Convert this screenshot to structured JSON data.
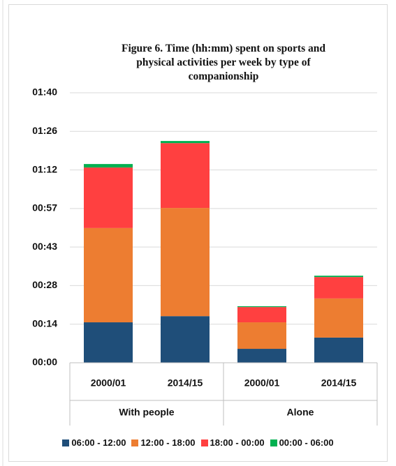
{
  "chart_data": {
    "type": "stacked_bar",
    "title": "Figure 6. Time (hh:mm) spent on sports and physical activities per week by type of companionship",
    "categories": [
      "2000/01",
      "2014/15",
      "2000/01",
      "2014/15"
    ],
    "group_labels": [
      "With people",
      "Alone"
    ],
    "series": [
      {
        "name": "06:00 - 12:00",
        "color": "#1f4e79",
        "values": [
          15.1,
          17.4,
          5.2,
          9.4
        ]
      },
      {
        "name": "12:00 - 18:00",
        "color": "#ed7d31",
        "values": [
          35.2,
          40.4,
          9.9,
          14.6
        ]
      },
      {
        "name": "18:00 - 00:00",
        "color": "#ff4040",
        "values": [
          22.6,
          24.2,
          5.7,
          8.0
        ]
      },
      {
        "name": "00:00 - 06:00",
        "color": "#00b050",
        "values": [
          1.3,
          0.8,
          0.3,
          0.5
        ]
      }
    ],
    "ylim": [
      0,
      100.8
    ],
    "yticks": [
      {
        "value": 0,
        "label": "00:00"
      },
      {
        "value": 14.4,
        "label": "00:14"
      },
      {
        "value": 28.8,
        "label": "00:28"
      },
      {
        "value": 43.2,
        "label": "00:43"
      },
      {
        "value": 57.6,
        "label": "00:57"
      },
      {
        "value": 72,
        "label": "01:12"
      },
      {
        "value": 86.4,
        "label": "01:26"
      },
      {
        "value": 100.8,
        "label": "01:40"
      }
    ],
    "grid": true,
    "legend": "bottom"
  }
}
